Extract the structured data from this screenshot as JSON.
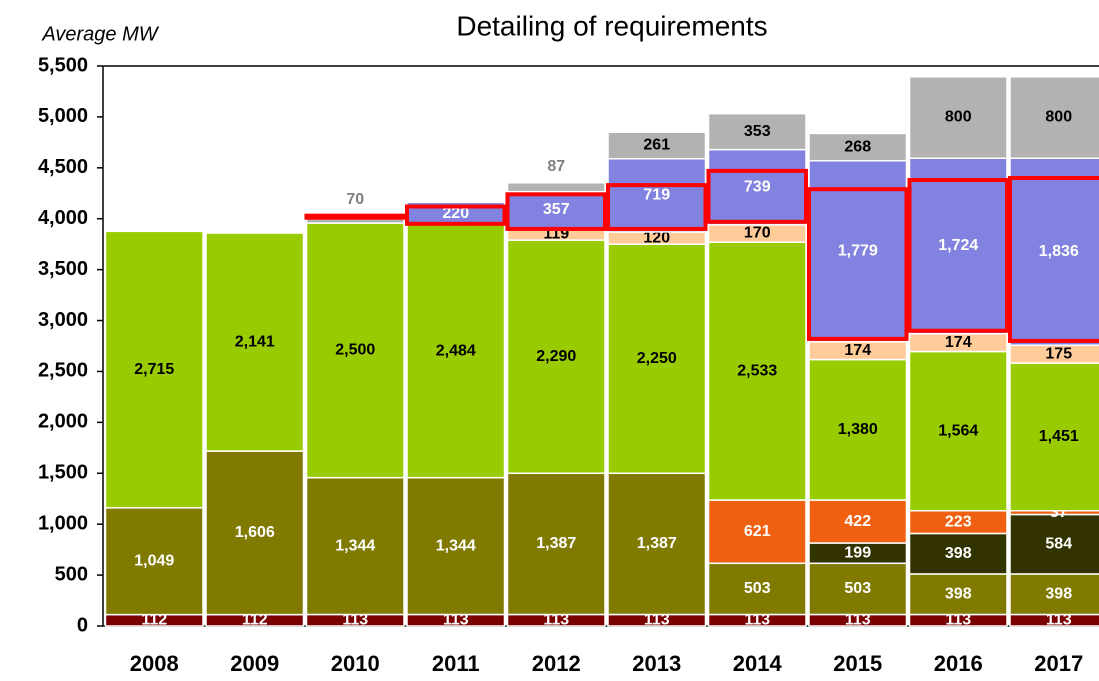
{
  "chart_data": {
    "type": "stacked_bar",
    "title": "Detailing of requirements",
    "y_label": "Average MW",
    "categories": [
      "2008",
      "2009",
      "2010",
      "2011",
      "2012",
      "2013",
      "2014",
      "2015",
      "2016",
      "2017"
    ],
    "ylim": [
      0,
      5500
    ],
    "yticks": [
      0,
      {
        "value": 500,
        "label": "500"
      },
      {
        "value": 1000,
        "label": "1,000"
      },
      {
        "value": 1500,
        "label": "1,500"
      },
      {
        "value": 2000,
        "label": "2,000"
      },
      {
        "value": 2500,
        "label": "2,500"
      },
      {
        "value": 3000,
        "label": "3,000"
      },
      {
        "value": 3500,
        "label": "3,500"
      },
      {
        "value": 4000,
        "label": "4,000"
      },
      {
        "value": 4500,
        "label": "4,500"
      },
      {
        "value": 5000,
        "label": "5,000"
      },
      {
        "value": 5500,
        "label": "5,500"
      }
    ],
    "series": [
      {
        "color": "#7a0000",
        "label_color": "#ffffff",
        "values": [
          112,
          112,
          113,
          113,
          113,
          113,
          113,
          113,
          113,
          113
        ]
      },
      {
        "color": "#807a00",
        "label_color": "#ffffff",
        "values": [
          1049,
          1606,
          1344,
          1344,
          1387,
          1387,
          503,
          503,
          398,
          398
        ],
        "value_labels": [
          "1,049",
          "1,606",
          "1,344",
          "1,344",
          "1,387",
          "1,387",
          "503",
          "503",
          "398",
          "398"
        ]
      },
      {
        "color": "#333300",
        "label_color": "#ffffff",
        "values": [
          null,
          null,
          null,
          null,
          null,
          null,
          null,
          199,
          398,
          584
        ]
      },
      {
        "color": "#f06010",
        "label_color": "#ffffff",
        "values": [
          null,
          null,
          null,
          null,
          null,
          null,
          621,
          422,
          223,
          37
        ]
      },
      {
        "color": "#99cc00",
        "label_color": "#000000",
        "values": [
          2715,
          2141,
          2500,
          2484,
          2290,
          2250,
          2533,
          1380,
          1564,
          1451
        ],
        "value_labels": [
          "2,715",
          "2,141",
          "2,500",
          "2,484",
          "2,290",
          "2,250",
          "2,533",
          "1,380",
          "1,564",
          "1,451"
        ]
      },
      {
        "color": "#ffcc99",
        "label_color": "#000000",
        "values": [
          null,
          null,
          null,
          null,
          119,
          120,
          170,
          174,
          174,
          175
        ]
      },
      {
        "color": "#8282e0",
        "label_color": "#ffffff",
        "values": [
          null,
          null,
          null,
          220,
          357,
          719,
          739,
          1779,
          1724,
          1836
        ],
        "value_labels": [
          null,
          null,
          null,
          "220",
          "357",
          "719",
          "739",
          "1,779",
          "1,724",
          "1,836"
        ]
      },
      {
        "color": "#b2b2b2",
        "label_color": "#000000",
        "values": [
          null,
          null,
          70,
          null,
          87,
          261,
          353,
          268,
          800,
          800
        ]
      }
    ],
    "highlight": {
      "color": "#ff0000",
      "low": [
        null,
        null,
        4010,
        3950,
        3900,
        3900,
        3970,
        2820,
        2900,
        2800
      ],
      "high": [
        null,
        null,
        4030,
        4120,
        4240,
        4330,
        4470,
        4290,
        4380,
        4400
      ]
    }
  }
}
